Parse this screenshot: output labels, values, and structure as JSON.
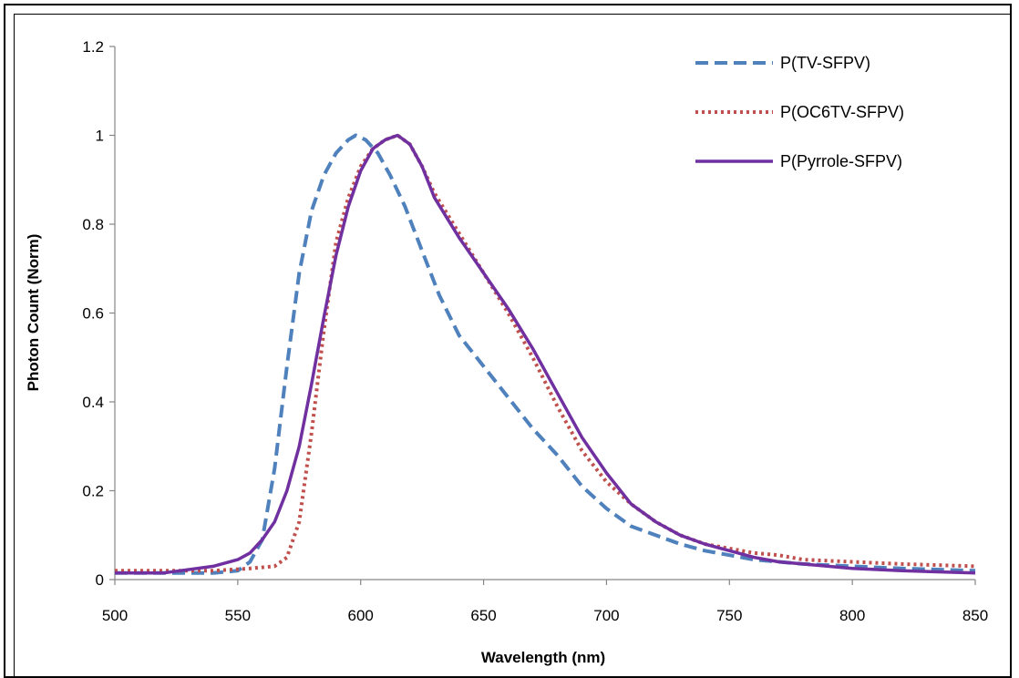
{
  "chart_data": {
    "type": "line",
    "title": "",
    "xlabel": "Wavelength (nm)",
    "ylabel": "Photon Count (Norm)",
    "xlim": [
      500,
      850
    ],
    "ylim": [
      0,
      1.2
    ],
    "x_ticks": [
      500,
      550,
      600,
      650,
      700,
      750,
      800,
      850
    ],
    "y_ticks": [
      "0",
      "0.2",
      "0.4",
      "0.6",
      "0.8",
      "1",
      "1.2"
    ],
    "grid": false,
    "legend_position": "top-right",
    "series": [
      {
        "name": "P(TV-SFPV)",
        "color": "#4F81BD",
        "style": "dashed",
        "x": [
          500,
          520,
          540,
          550,
          555,
          560,
          565,
          570,
          575,
          580,
          585,
          590,
          595,
          598,
          602,
          607,
          612,
          618,
          625,
          632,
          640,
          650,
          660,
          670,
          680,
          690,
          700,
          710,
          720,
          730,
          740,
          750,
          760,
          770,
          780,
          800,
          820,
          850
        ],
        "y": [
          0.015,
          0.015,
          0.015,
          0.02,
          0.04,
          0.09,
          0.25,
          0.48,
          0.69,
          0.83,
          0.91,
          0.96,
          0.99,
          1.0,
          0.99,
          0.96,
          0.91,
          0.84,
          0.74,
          0.64,
          0.55,
          0.48,
          0.41,
          0.34,
          0.28,
          0.21,
          0.16,
          0.12,
          0.1,
          0.08,
          0.065,
          0.055,
          0.045,
          0.04,
          0.035,
          0.03,
          0.025,
          0.02
        ]
      },
      {
        "name": "P(OC6TV-SFPV)",
        "color": "#C0504D",
        "style": "dotted",
        "x": [
          500,
          520,
          540,
          555,
          565,
          570,
          575,
          580,
          585,
          590,
          595,
          600,
          605,
          610,
          615,
          620,
          625,
          630,
          640,
          650,
          660,
          670,
          680,
          690,
          700,
          710,
          720,
          730,
          740,
          750,
          760,
          770,
          780,
          800,
          820,
          850
        ],
        "y": [
          0.02,
          0.02,
          0.02,
          0.025,
          0.03,
          0.05,
          0.13,
          0.33,
          0.56,
          0.76,
          0.86,
          0.93,
          0.97,
          0.99,
          1.0,
          0.98,
          0.93,
          0.87,
          0.78,
          0.69,
          0.6,
          0.5,
          0.39,
          0.29,
          0.22,
          0.17,
          0.13,
          0.1,
          0.08,
          0.07,
          0.06,
          0.055,
          0.045,
          0.04,
          0.035,
          0.03
        ]
      },
      {
        "name": "P(Pyrrole-SFPV)",
        "color": "#7030A0",
        "style": "solid",
        "x": [
          500,
          520,
          540,
          550,
          555,
          560,
          565,
          570,
          575,
          580,
          585,
          590,
          595,
          600,
          605,
          610,
          615,
          620,
          625,
          630,
          640,
          650,
          660,
          670,
          680,
          690,
          700,
          710,
          720,
          730,
          740,
          750,
          760,
          770,
          780,
          800,
          820,
          850
        ],
        "y": [
          0.015,
          0.015,
          0.03,
          0.045,
          0.06,
          0.09,
          0.13,
          0.2,
          0.3,
          0.44,
          0.59,
          0.73,
          0.84,
          0.92,
          0.97,
          0.99,
          1.0,
          0.98,
          0.93,
          0.86,
          0.77,
          0.69,
          0.61,
          0.52,
          0.42,
          0.32,
          0.24,
          0.17,
          0.13,
          0.1,
          0.08,
          0.065,
          0.05,
          0.04,
          0.035,
          0.025,
          0.02,
          0.015
        ]
      }
    ]
  }
}
